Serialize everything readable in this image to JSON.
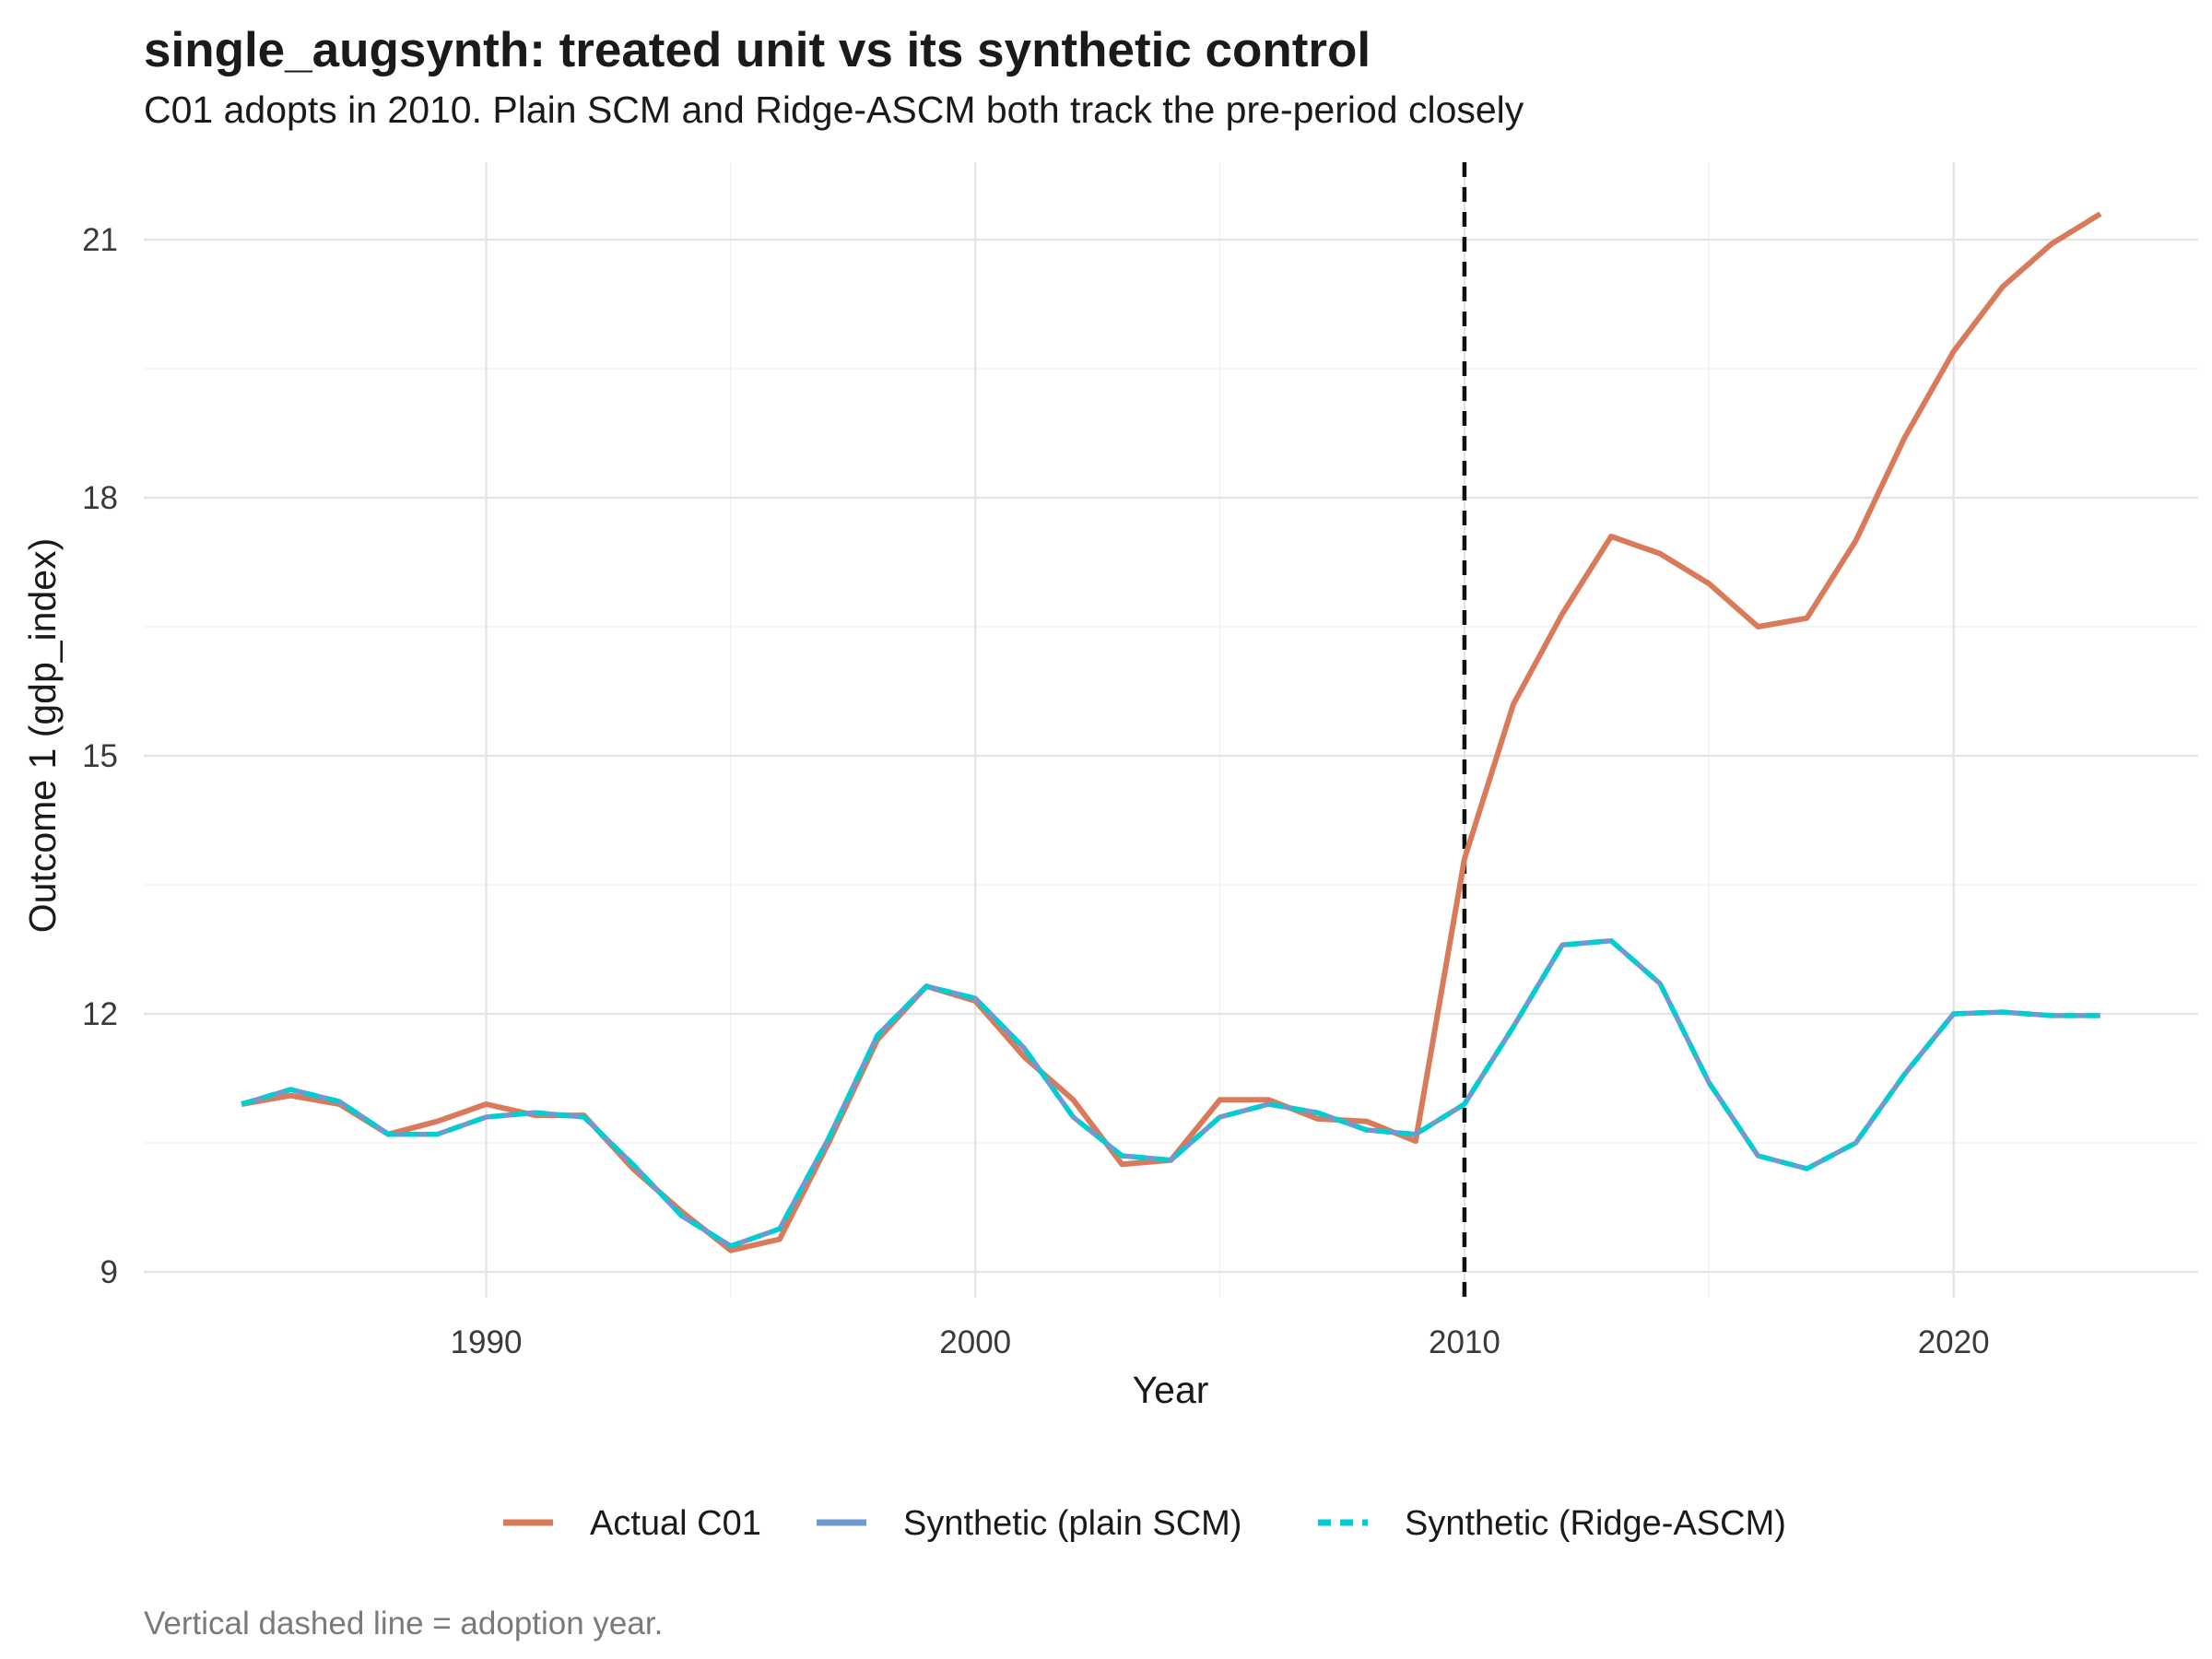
{
  "chart_data": {
    "type": "line",
    "title": "single_augsynth: treated unit vs its synthetic control",
    "subtitle": "C01 adopts in 2010. Plain SCM and Ridge-ASCM both track the pre-period closely",
    "caption": "Vertical dashed line = adoption year.",
    "xlabel": "Year",
    "ylabel": "Outcome 1 (gdp_index)",
    "xlim": [
      1983,
      2025
    ],
    "ylim": [
      8.7,
      21.9
    ],
    "x_ticks": [
      1990,
      2000,
      2010,
      2020
    ],
    "y_ticks": [
      9,
      12,
      15,
      18,
      21
    ],
    "grid": true,
    "legend_position": "bottom",
    "adoption_year": 2010,
    "x": [
      1985,
      1986,
      1987,
      1988,
      1989,
      1990,
      1991,
      1992,
      1993,
      1994,
      1995,
      1996,
      1997,
      1998,
      1999,
      2000,
      2001,
      2002,
      2003,
      2004,
      2005,
      2006,
      2007,
      2008,
      2009,
      2010,
      2011,
      2012,
      2013,
      2014,
      2015,
      2016,
      2017,
      2018,
      2019,
      2020,
      2021,
      2022,
      2023
    ],
    "series": [
      {
        "name": "Actual C01",
        "color": "#D97B5A",
        "dash": "solid",
        "values": [
          10.95,
          11.05,
          10.95,
          10.6,
          10.75,
          10.95,
          10.82,
          10.82,
          10.2,
          9.7,
          9.25,
          9.38,
          10.5,
          11.7,
          12.32,
          12.15,
          11.5,
          11.0,
          10.25,
          10.3,
          11.0,
          11.0,
          10.78,
          10.75,
          10.52,
          13.8,
          15.6,
          16.65,
          17.55,
          17.35,
          17.0,
          16.5,
          16.6,
          17.5,
          18.7,
          19.7,
          20.45,
          20.95,
          21.3
        ]
      },
      {
        "name": "Synthetic (plain SCM)",
        "color": "#6F9AD0",
        "dash": "solid",
        "values": [
          10.95,
          11.12,
          10.98,
          10.6,
          10.6,
          10.8,
          10.85,
          10.8,
          10.25,
          9.65,
          9.3,
          9.5,
          10.55,
          11.75,
          12.32,
          12.18,
          11.6,
          10.8,
          10.35,
          10.3,
          10.8,
          10.95,
          10.85,
          10.65,
          10.6,
          10.95,
          11.85,
          12.8,
          12.85,
          12.35,
          11.2,
          10.35,
          10.2,
          10.5,
          11.3,
          12.0,
          12.02,
          11.98,
          11.98
        ]
      },
      {
        "name": "Synthetic (Ridge-ASCM)",
        "color": "#00CED1",
        "dash": "dashed",
        "values": [
          10.95,
          11.12,
          10.98,
          10.6,
          10.6,
          10.8,
          10.85,
          10.8,
          10.25,
          9.65,
          9.3,
          9.5,
          10.55,
          11.75,
          12.32,
          12.18,
          11.6,
          10.8,
          10.35,
          10.3,
          10.8,
          10.95,
          10.85,
          10.65,
          10.6,
          10.95,
          11.85,
          12.8,
          12.85,
          12.35,
          11.2,
          10.35,
          10.2,
          10.5,
          11.3,
          12.0,
          12.02,
          11.98,
          11.98
        ]
      }
    ]
  }
}
